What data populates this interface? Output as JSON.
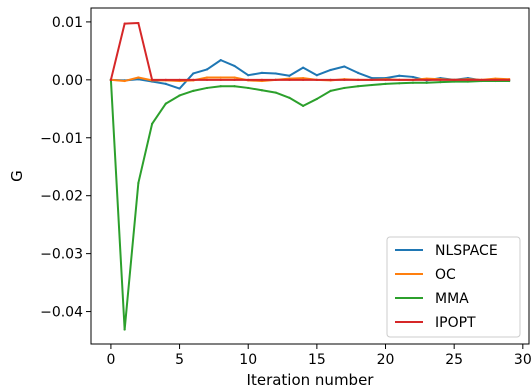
{
  "chart_data": {
    "type": "line",
    "xlabel": "Iteration number",
    "ylabel": "G",
    "xlim": [
      -1.45,
      30.45
    ],
    "ylim": [
      -0.0456,
      0.0124
    ],
    "xticks": [
      0,
      5,
      10,
      15,
      20,
      25,
      30
    ],
    "xtick_labels": [
      "0",
      "5",
      "10",
      "15",
      "20",
      "25",
      "30"
    ],
    "yticks": [
      0.01,
      0.0,
      -0.01,
      -0.02,
      -0.03,
      -0.04
    ],
    "ytick_labels": [
      "0.01",
      "0.00",
      "−0.01",
      "−0.02",
      "−0.03",
      "−0.04"
    ],
    "grid": false,
    "legend_position": "lower-right",
    "x": [
      0,
      1,
      2,
      3,
      4,
      5,
      6,
      7,
      8,
      9,
      10,
      11,
      12,
      13,
      14,
      15,
      16,
      17,
      18,
      19,
      20,
      21,
      22,
      23,
      24,
      25,
      26,
      27,
      28,
      29
    ],
    "series": [
      {
        "name": "NLSPACE",
        "color": "#1f77b4",
        "values": [
          0.0,
          -0.0001,
          0.0001,
          -0.0003,
          -0.0007,
          -0.0015,
          0.0011,
          0.0018,
          0.0034,
          0.0024,
          0.0008,
          0.0012,
          0.0011,
          0.0007,
          0.0021,
          0.0008,
          0.0017,
          0.0023,
          0.0012,
          0.0003,
          0.0003,
          0.0007,
          0.0005,
          -0.0001,
          0.0003,
          0.0,
          0.0003,
          -0.0001,
          0.0001,
          -0.0001
        ]
      },
      {
        "name": "OC",
        "color": "#ff7f0e",
        "values": [
          0.0,
          -0.0002,
          0.0004,
          -0.0001,
          -0.0001,
          -0.0002,
          -0.0001,
          0.0004,
          0.0004,
          0.0004,
          -0.0001,
          -0.0002,
          0.0,
          0.0002,
          0.0003,
          0.0,
          -0.0001,
          0.0001,
          0.0,
          0.0,
          0.0001,
          0.0,
          0.0,
          0.0002,
          0.0001,
          0.0,
          0.0001,
          0.0,
          0.0002,
          0.0001
        ]
      },
      {
        "name": "MMA",
        "color": "#2ca02c",
        "values": [
          0.0,
          -0.0431,
          -0.0178,
          -0.0076,
          -0.0041,
          -0.0027,
          -0.0019,
          -0.0014,
          -0.0011,
          -0.0011,
          -0.0014,
          -0.0018,
          -0.0022,
          -0.0031,
          -0.0045,
          -0.0033,
          -0.0019,
          -0.0014,
          -0.0011,
          -0.0009,
          -0.0007,
          -0.0006,
          -0.0005,
          -0.0005,
          -0.0004,
          -0.0003,
          -0.0003,
          -0.0002,
          -0.0002,
          -0.0002
        ]
      },
      {
        "name": "IPOPT",
        "color": "#d62728",
        "values": [
          0.0,
          0.0097,
          0.0098,
          0.0,
          0.0,
          0.0,
          0.0,
          0.0,
          0.0,
          0.0,
          0.0,
          0.0,
          0.0,
          0.0,
          0.0,
          0.0,
          0.0,
          0.0,
          0.0,
          0.0,
          0.0,
          0.0,
          0.0,
          0.0,
          0.0,
          0.0,
          0.0,
          0.0,
          0.0,
          0.0
        ]
      }
    ]
  }
}
